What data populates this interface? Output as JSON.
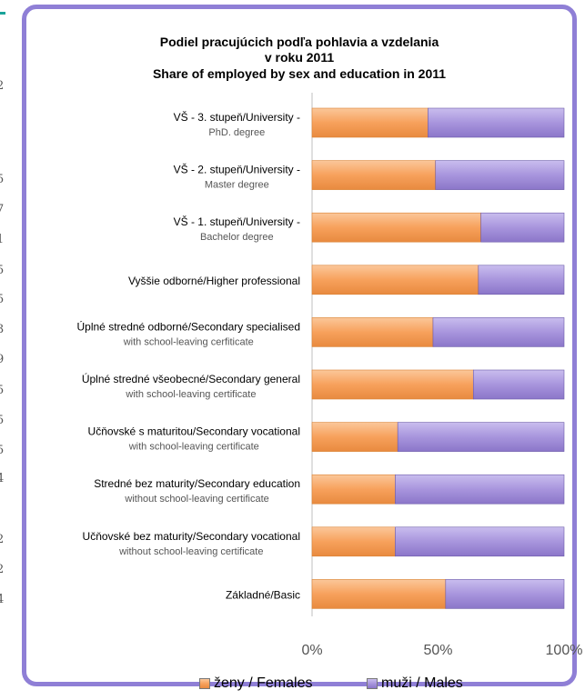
{
  "page_edge_numbers": [
    "2",
    "5",
    "7",
    "1",
    "5",
    "5",
    "3",
    "9",
    "5",
    "5",
    "5",
    "4",
    "2",
    "2",
    "4"
  ],
  "chart_data": {
    "type": "bar",
    "orientation": "horizontal",
    "stacked": "percent",
    "title_lines": [
      "Podiel pracujúcich podľa pohlavia a vzdelania",
      "v roku 2011",
      "Share of employed by sex and education in 2011"
    ],
    "categories": [
      {
        "line1": "VŠ - 3. stupeň/University -",
        "line2": "PhD. degree"
      },
      {
        "line1": "VŠ - 2. stupeň/University -",
        "line2": "Master degree"
      },
      {
        "line1": "VŠ - 1. stupeň/University -",
        "line2": "Bachelor degree"
      },
      {
        "line1": "Vyššie odborné/Higher professional",
        "line2": ""
      },
      {
        "line1": "Úplné stredné odborné/Secondary specialised",
        "line2": "with school-leaving cerfiticate"
      },
      {
        "line1": "Úplné stredné všeobecné/Secondary general",
        "line2": "with school-leaving certificate"
      },
      {
        "line1": "Učňovské s maturitou/Secondary vocational",
        "line2": "with school-leaving certificate"
      },
      {
        "line1": "Stredné bez maturity/Secondary education",
        "line2": "without school-leaving certificate"
      },
      {
        "line1": "Učňovské bez maturity/Secondary vocational",
        "line2": "without school-leaving certificate"
      },
      {
        "line1": "Základné/Basic",
        "line2": ""
      }
    ],
    "series": [
      {
        "name": "ženy / Females",
        "color": "#f7a15c",
        "values": [
          46,
          49,
          67,
          66,
          48,
          64,
          34,
          33,
          33,
          53
        ]
      },
      {
        "name": "muži / Males",
        "color": "#9b87d6",
        "values": [
          54,
          51,
          33,
          34,
          52,
          36,
          66,
          67,
          67,
          47
        ]
      }
    ],
    "x_ticks": [
      "0%",
      "50%",
      "100%"
    ],
    "xlim": [
      0,
      100
    ],
    "legend": "bottom"
  }
}
